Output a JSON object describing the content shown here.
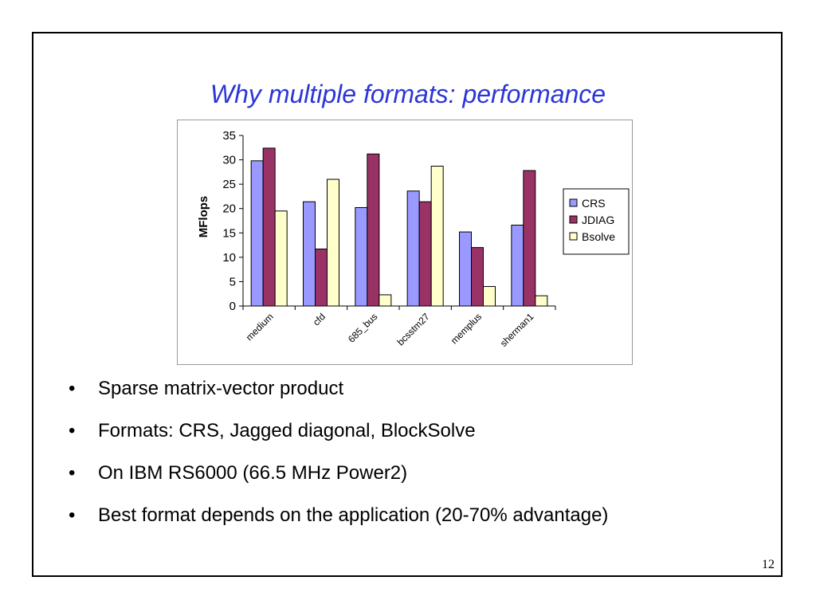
{
  "slide": {
    "title": "Why multiple formats: performance",
    "page_number": "12"
  },
  "bullets": [
    "Sparse matrix-vector product",
    "Formats: CRS, Jagged diagonal, BlockSolve",
    "On IBM RS6000 (66.5 MHz Power2)",
    "Best format depends on the application (20-70% advantage)"
  ],
  "chart_data": {
    "type": "bar",
    "title": "",
    "xlabel": "",
    "ylabel": "MFlops",
    "ylim": [
      0,
      35
    ],
    "yticks": [
      0,
      5,
      10,
      15,
      20,
      25,
      30,
      35
    ],
    "categories": [
      "medium",
      "cfd",
      "685_bus",
      "bcsstm27",
      "memplus",
      "sherman1"
    ],
    "series": [
      {
        "name": "CRS",
        "color": "#9999ff",
        "values": [
          29.8,
          21.4,
          20.2,
          23.6,
          15.2,
          16.6
        ]
      },
      {
        "name": "JDIAG",
        "color": "#993366",
        "values": [
          32.4,
          11.7,
          31.2,
          21.4,
          12.0,
          27.8
        ]
      },
      {
        "name": "Bsolve",
        "color": "#ffffcc",
        "values": [
          19.5,
          26.0,
          2.3,
          28.7,
          4.0,
          2.1
        ]
      }
    ],
    "grid": false,
    "legend": "right"
  }
}
